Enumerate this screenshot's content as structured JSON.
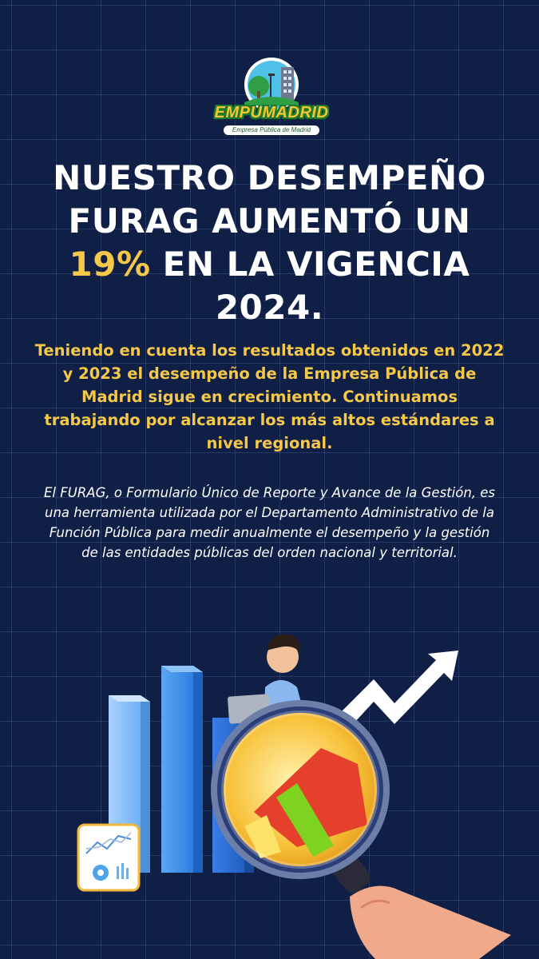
{
  "logo": {
    "name": "EMPUMADRID",
    "tagline": "Empresa Pública de Madrid"
  },
  "headline": {
    "line1": "NUESTRO DESEMPEÑO",
    "line2": "FURAG AUMENTÓ UN",
    "highlight": "19%",
    "line3_rest": " EN LA VIGENCIA",
    "line4": "2024."
  },
  "intro": "Teniendo en cuenta los resultados obtenidos en 2022 y 2023 el desempeño de la Empresa Pública de Madrid sigue en crecimiento. Continuamos trabajando por alcanzar los más altos estándares a nivel regional.",
  "body": "El FURAG, o Formulario Único de Reporte y Avance de la Gestión, es una herramienta utilizada por el Departamento Administrativo de la Función Pública para medir anualmente el desempeño y la gestión de las entidades públicas del orden nacional y territorial.",
  "colors": {
    "background": "#0f1f45",
    "accent": "#f5c84a",
    "text": "#ffffff"
  }
}
